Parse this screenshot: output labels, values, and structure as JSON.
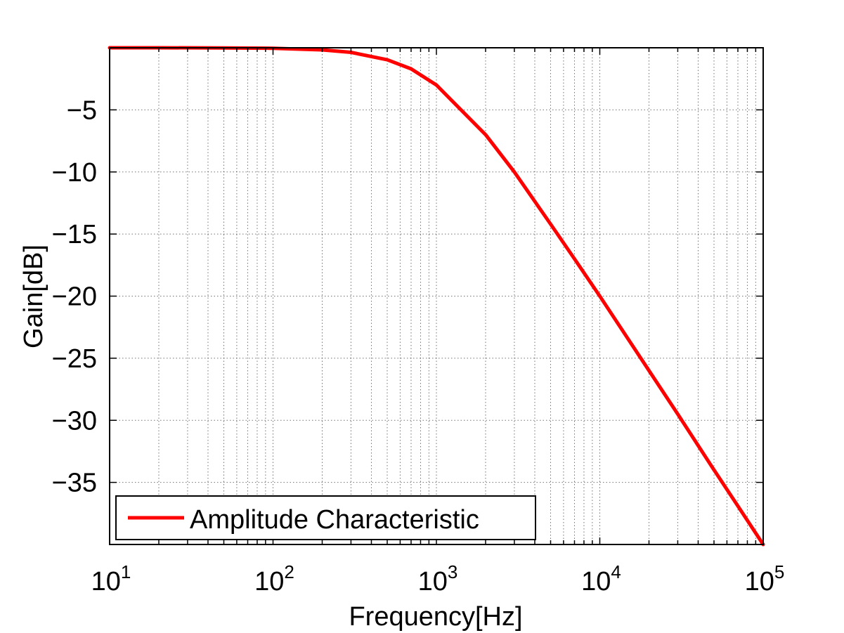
{
  "chart_data": {
    "type": "line",
    "title": "",
    "xlabel": "Frequency[Hz]",
    "ylabel": "Gain[dB]",
    "xscale": "log",
    "xlim": [
      10,
      100000
    ],
    "ylim": [
      -40,
      0
    ],
    "grid": true,
    "legend_position": "bottom-left",
    "x_ticks": [
      {
        "value": 10,
        "base": "10",
        "exp": "1"
      },
      {
        "value": 100,
        "base": "10",
        "exp": "2"
      },
      {
        "value": 1000,
        "base": "10",
        "exp": "3"
      },
      {
        "value": 10000,
        "base": "10",
        "exp": "4"
      },
      {
        "value": 100000,
        "base": "10",
        "exp": "5"
      }
    ],
    "y_ticks": [
      {
        "value": -5,
        "label": "−5"
      },
      {
        "value": -10,
        "label": "−10"
      },
      {
        "value": -15,
        "label": "−15"
      },
      {
        "value": -20,
        "label": "−20"
      },
      {
        "value": -25,
        "label": "−25"
      },
      {
        "value": -30,
        "label": "−30"
      },
      {
        "value": -35,
        "label": "−35"
      }
    ],
    "series": [
      {
        "name": "Amplitude Characteristic",
        "color": "#ff0000",
        "x": [
          10,
          20,
          50,
          100,
          200,
          300,
          500,
          700,
          1000,
          2000,
          3000,
          5000,
          7000,
          10000,
          20000,
          30000,
          50000,
          70000,
          100000
        ],
        "y": [
          0,
          0,
          -0.01,
          -0.04,
          -0.17,
          -0.37,
          -0.97,
          -1.7,
          -3.0,
          -7.0,
          -10.0,
          -14.2,
          -17.0,
          -20.0,
          -26.0,
          -29.5,
          -34.0,
          -36.9,
          -40.0
        ]
      }
    ]
  }
}
